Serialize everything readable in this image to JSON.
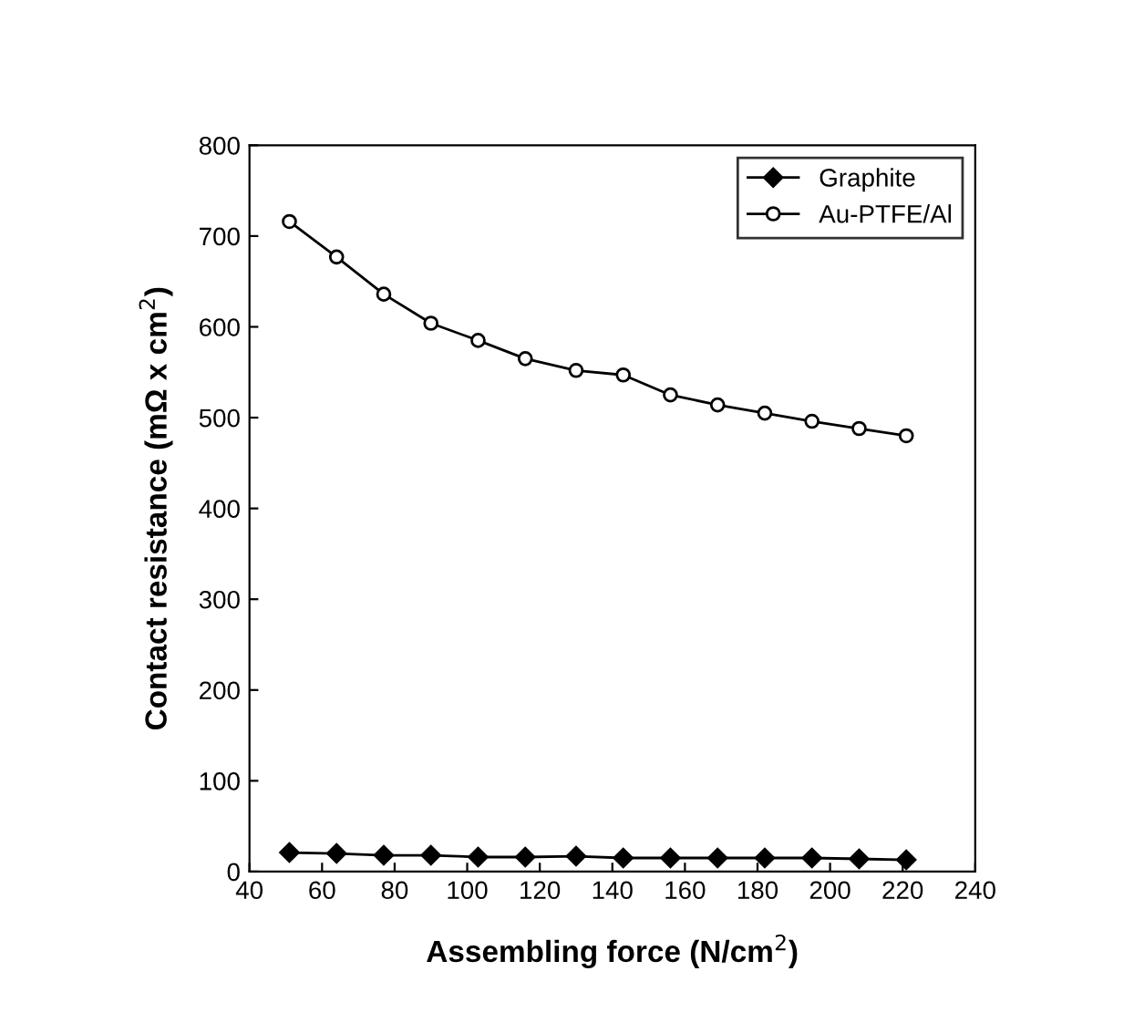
{
  "chart_data": {
    "type": "line",
    "xlabel": "Assembling force (N/cm$^{2}$)",
    "ylabel": "Contact resistance (mΩ x cm$^{2}$)",
    "x": [
      51,
      64,
      77,
      90,
      103,
      116,
      130,
      143,
      156,
      169,
      182,
      195,
      208,
      221
    ],
    "series": [
      {
        "name": "Graphite",
        "color": "#000000",
        "marker": "diamond_filled",
        "values": [
          21,
          20,
          18,
          18,
          16,
          16,
          17,
          15,
          15,
          15,
          15,
          15,
          14,
          13
        ]
      },
      {
        "name": "Au-PTFE/Al",
        "color": "#000000",
        "marker": "circle_open",
        "values": [
          716,
          677,
          636,
          604,
          585,
          565,
          552,
          547,
          525,
          514,
          505,
          496,
          488,
          480
        ]
      }
    ],
    "xlim": [
      40,
      240
    ],
    "xticks": [
      40,
      60,
      80,
      100,
      120,
      140,
      160,
      180,
      200,
      220,
      240
    ],
    "ylim": [
      0,
      800
    ],
    "yticks": [
      0,
      100,
      200,
      300,
      400,
      500,
      600,
      700,
      800
    ],
    "grid": false,
    "legend": "top right",
    "line_style": "solid"
  }
}
